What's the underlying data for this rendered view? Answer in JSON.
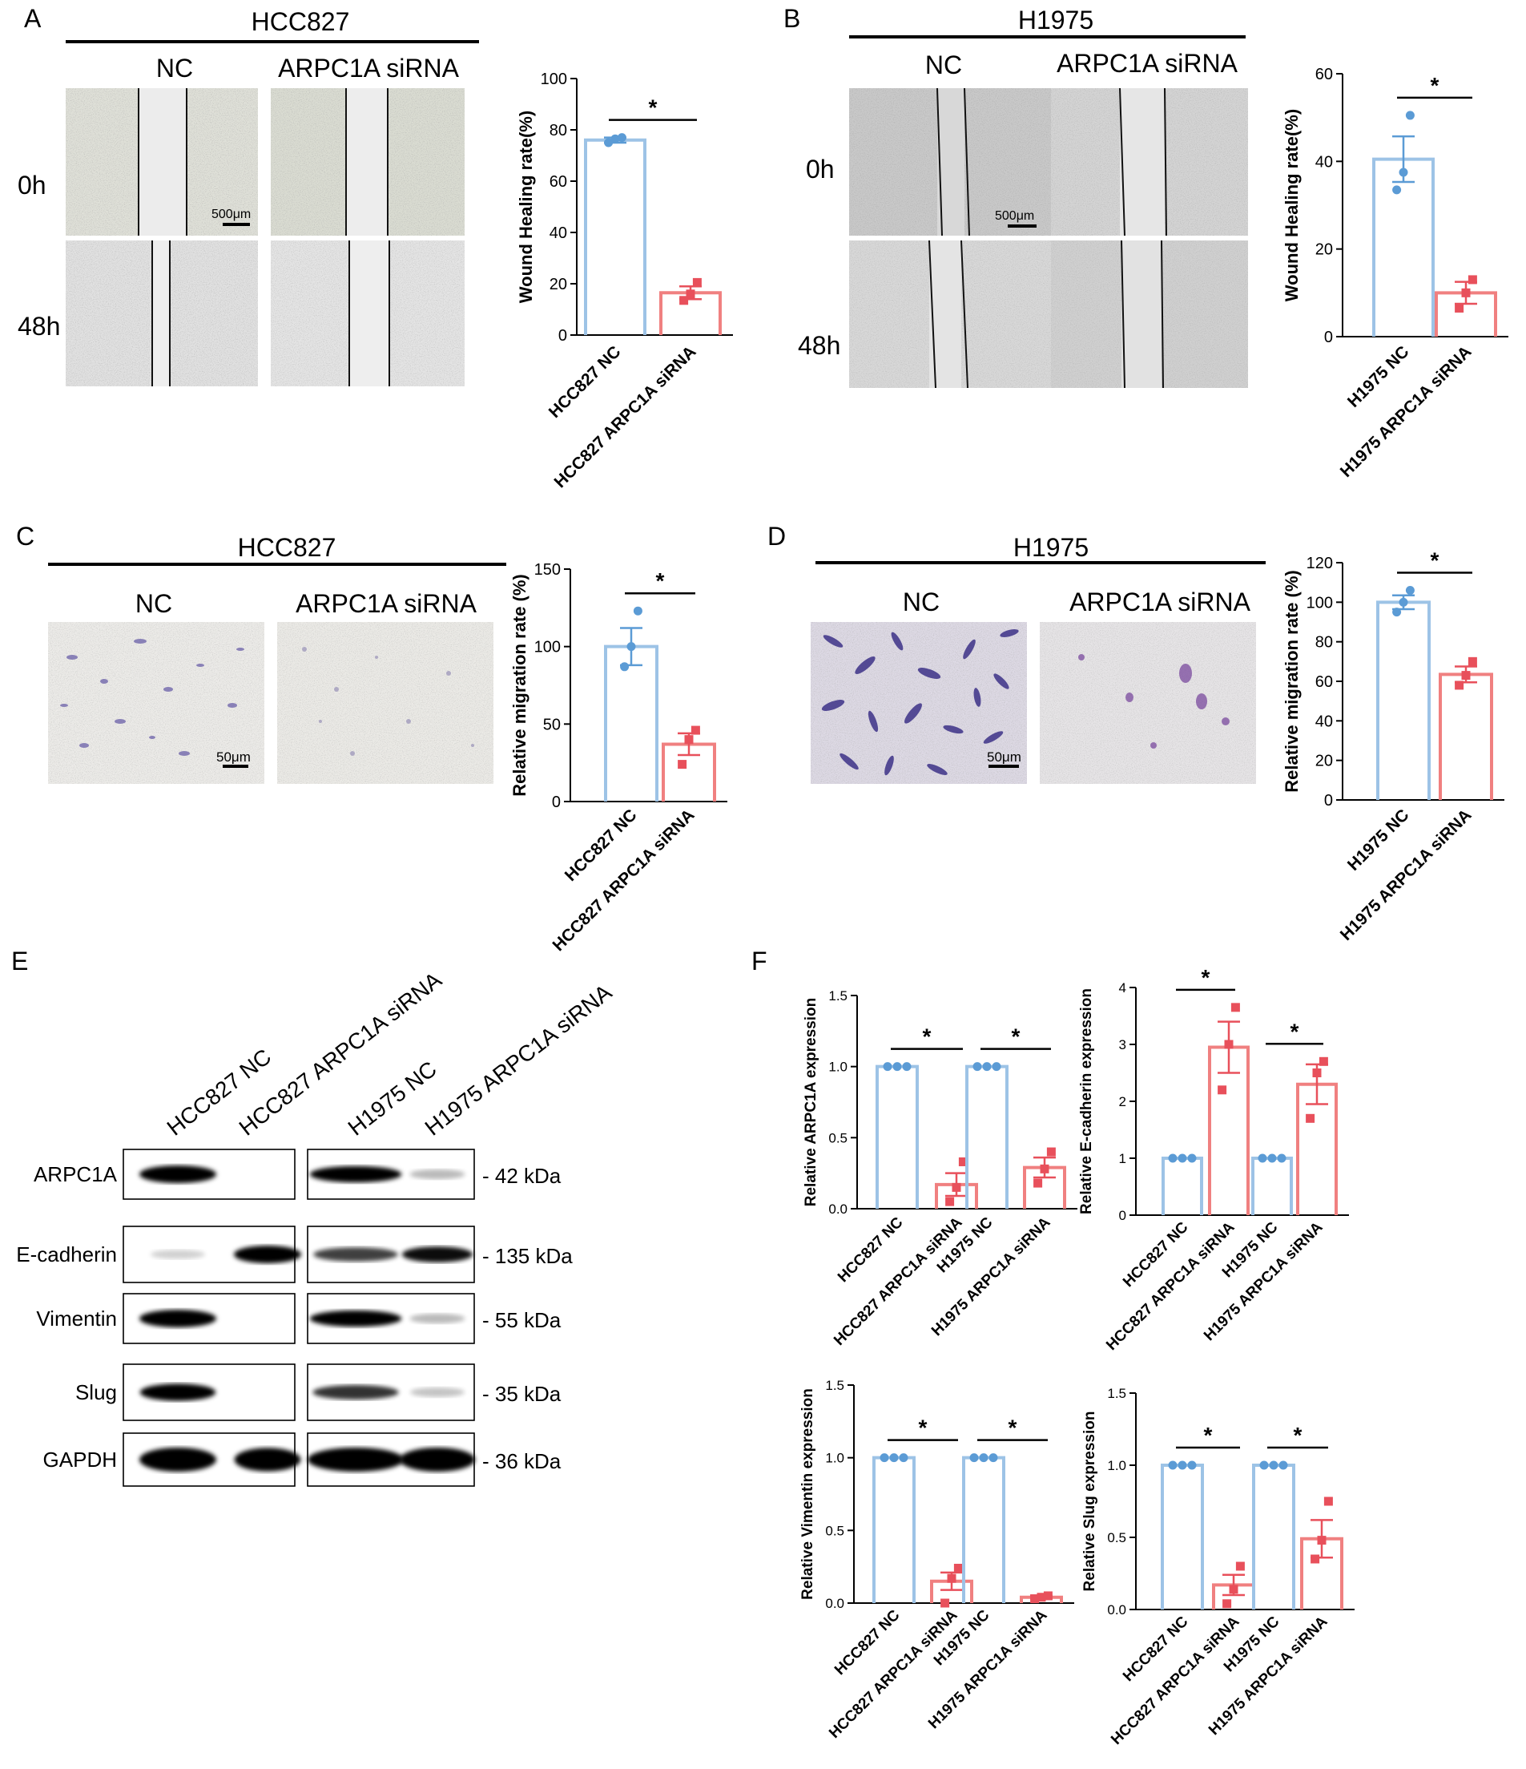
{
  "panels": {
    "A": {
      "letter": "A",
      "cell_line": "HCC827",
      "conditions": [
        "NC",
        "ARPC1A siRNA"
      ],
      "timepoints": [
        "0h",
        "48h"
      ],
      "scale_bar": "500μm"
    },
    "B": {
      "letter": "B",
      "cell_line": "H1975",
      "conditions": [
        "NC",
        "ARPC1A siRNA"
      ],
      "timepoints": [
        "0h",
        "48h"
      ],
      "scale_bar": "500μm"
    },
    "C": {
      "letter": "C",
      "cell_line": "HCC827",
      "conditions": [
        "NC",
        "ARPC1A siRNA"
      ],
      "scale_bar": "50μm"
    },
    "D": {
      "letter": "D",
      "cell_line": "H1975",
      "conditions": [
        "NC",
        "ARPC1A siRNA"
      ],
      "scale_bar": "50μm"
    },
    "E": {
      "letter": "E",
      "lanes": [
        "HCC827  NC",
        "HCC827  ARPC1A siRNA",
        "H1975  NC",
        "H1975  ARPC1A siRNA"
      ],
      "rows": [
        {
          "protein": "ARPC1A",
          "size": "- 42 kDa",
          "intensity": [
            1.0,
            0.0,
            0.85,
            0.12
          ]
        },
        {
          "protein": "E-cadherin",
          "size": "- 135 kDa",
          "intensity": [
            0.03,
            1.0,
            0.6,
            0.8
          ]
        },
        {
          "protein": "Vimentin",
          "size": "- 55 kDa",
          "intensity": [
            1.0,
            0.0,
            0.85,
            0.12
          ]
        },
        {
          "protein": "Slug",
          "size": "- 35 kDa",
          "intensity": [
            0.95,
            0.0,
            0.65,
            0.08
          ]
        },
        {
          "protein": "GAPDH",
          "size": "- 36 kDa",
          "intensity": [
            1.0,
            0.95,
            1.0,
            1.0
          ]
        }
      ]
    },
    "F": {
      "letter": "F"
    }
  },
  "colors": {
    "nc": "#9dc3e6",
    "nc_dot": "#5b9bd5",
    "si": "#f08080",
    "si_dot": "#e8505b"
  },
  "chart_data": [
    {
      "id": "A",
      "type": "bar",
      "ylabel": "Wound Healing rate(%)",
      "categories": [
        "HCC827 NC",
        "HCC827 ARPC1A siRNA"
      ],
      "values": [
        76,
        16.5
      ],
      "errors": [
        1.0,
        2.5
      ],
      "points": [
        [
          75,
          76.5,
          77
        ],
        [
          13.5,
          16,
          20.5
        ]
      ],
      "ylim": [
        0,
        100
      ],
      "yticks": [
        0,
        20,
        40,
        60,
        80,
        100
      ],
      "significance": [
        {
          "label": "*",
          "between": [
            0,
            1
          ]
        }
      ]
    },
    {
      "id": "B",
      "type": "bar",
      "ylabel": "Wound Healing rate(%)",
      "categories": [
        "H1975 NC",
        "H1975 ARPC1A siRNA"
      ],
      "values": [
        40.5,
        10
      ],
      "errors": [
        5.2,
        2.5
      ],
      "points": [
        [
          33.5,
          37.5,
          50.5
        ],
        [
          6.5,
          10,
          13
        ]
      ],
      "ylim": [
        0,
        60
      ],
      "yticks": [
        0,
        20,
        40,
        60
      ],
      "significance": [
        {
          "label": "*",
          "between": [
            0,
            1
          ]
        }
      ]
    },
    {
      "id": "C",
      "type": "bar",
      "ylabel": "Relative migration rate (%)",
      "categories": [
        "HCC827 NC",
        "HCC827 ARPC1A siRNA"
      ],
      "values": [
        100,
        37
      ],
      "errors": [
        12,
        7
      ],
      "points": [
        [
          87,
          100,
          123
        ],
        [
          24,
          40,
          46
        ]
      ],
      "ylim": [
        0,
        150
      ],
      "yticks": [
        0,
        50,
        100,
        150
      ],
      "significance": [
        {
          "label": "*",
          "between": [
            0,
            1
          ]
        }
      ]
    },
    {
      "id": "D",
      "type": "bar",
      "ylabel": "Relative migration rate (%)",
      "categories": [
        "H1975 NC",
        "H1975 ARPC1A siRNA"
      ],
      "values": [
        100,
        63.5
      ],
      "errors": [
        3.5,
        4
      ],
      "points": [
        [
          95,
          100,
          106
        ],
        [
          58,
          63,
          70
        ]
      ],
      "ylim": [
        0,
        120
      ],
      "yticks": [
        0,
        20,
        40,
        60,
        80,
        100,
        120
      ],
      "significance": [
        {
          "label": "*",
          "between": [
            0,
            1
          ]
        }
      ]
    },
    {
      "id": "F1",
      "type": "bar",
      "ylabel": "Relative ARPC1A  expression",
      "categories": [
        "HCC827 NC",
        "HCC827 ARPC1A siRNA",
        "H1975 NC",
        "H1975 ARPC1A siRNA"
      ],
      "values": [
        1.0,
        0.17,
        1.0,
        0.29
      ],
      "errors": [
        0,
        0.08,
        0,
        0.07
      ],
      "points": [
        [
          1,
          1,
          1
        ],
        [
          0.05,
          0.15,
          0.33
        ],
        [
          1,
          1,
          1
        ],
        [
          0.18,
          0.28,
          0.4
        ]
      ],
      "ylim": [
        0,
        1.5
      ],
      "yticks": [
        0.0,
        0.5,
        1.0,
        1.5
      ],
      "significance": [
        {
          "label": "*",
          "between": [
            0,
            1
          ]
        },
        {
          "label": "*",
          "between": [
            2,
            3
          ]
        }
      ]
    },
    {
      "id": "F2",
      "type": "bar",
      "ylabel": "Relative E-cadherin  expression",
      "categories": [
        "HCC827 NC",
        "HCC827 ARPC1A siRNA",
        "H1975 NC",
        "H1975 ARPC1A siRNA"
      ],
      "values": [
        1.0,
        2.95,
        1.0,
        2.3
      ],
      "errors": [
        0,
        0.45,
        0,
        0.35
      ],
      "points": [
        [
          1,
          1,
          1
        ],
        [
          2.2,
          3.0,
          3.65
        ],
        [
          1,
          1,
          1
        ],
        [
          1.7,
          2.5,
          2.7
        ]
      ],
      "ylim": [
        0,
        4
      ],
      "yticks": [
        0,
        1,
        2,
        3,
        4
      ],
      "significance": [
        {
          "label": "*",
          "between": [
            0,
            1
          ]
        },
        {
          "label": "*",
          "between": [
            2,
            3
          ]
        }
      ]
    },
    {
      "id": "F3",
      "type": "bar",
      "ylabel": "Relative Vimentin  expression",
      "categories": [
        "HCC827 NC",
        "HCC827 ARPC1A siRNA",
        "H1975 NC",
        "H1975 ARPC1A siRNA"
      ],
      "values": [
        1.0,
        0.15,
        1.0,
        0.04
      ],
      "errors": [
        0,
        0.06,
        0,
        0.01
      ],
      "points": [
        [
          1,
          1,
          1
        ],
        [
          0.0,
          0.17,
          0.24
        ],
        [
          1,
          1,
          1
        ],
        [
          0.03,
          0.04,
          0.05
        ]
      ],
      "ylim": [
        0,
        1.5
      ],
      "yticks": [
        0.0,
        0.5,
        1.0,
        1.5
      ],
      "significance": [
        {
          "label": "*",
          "between": [
            0,
            1
          ]
        },
        {
          "label": "*",
          "between": [
            2,
            3
          ]
        }
      ]
    },
    {
      "id": "F4",
      "type": "bar",
      "ylabel": "Relative Slug  expression",
      "categories": [
        "HCC827 NC",
        "HCC827 ARPC1A siRNA",
        "H1975 NC",
        "H1975 ARPC1A siRNA"
      ],
      "values": [
        1.0,
        0.17,
        1.0,
        0.49
      ],
      "errors": [
        0,
        0.07,
        0,
        0.13
      ],
      "points": [
        [
          1,
          1,
          1
        ],
        [
          0.04,
          0.14,
          0.3
        ],
        [
          1,
          1,
          1
        ],
        [
          0.35,
          0.48,
          0.75
        ]
      ],
      "ylim": [
        0,
        1.5
      ],
      "yticks": [
        0.0,
        0.5,
        1.0,
        1.5
      ],
      "significance": [
        {
          "label": "*",
          "between": [
            0,
            1
          ]
        },
        {
          "label": "*",
          "between": [
            2,
            3
          ]
        }
      ]
    }
  ]
}
